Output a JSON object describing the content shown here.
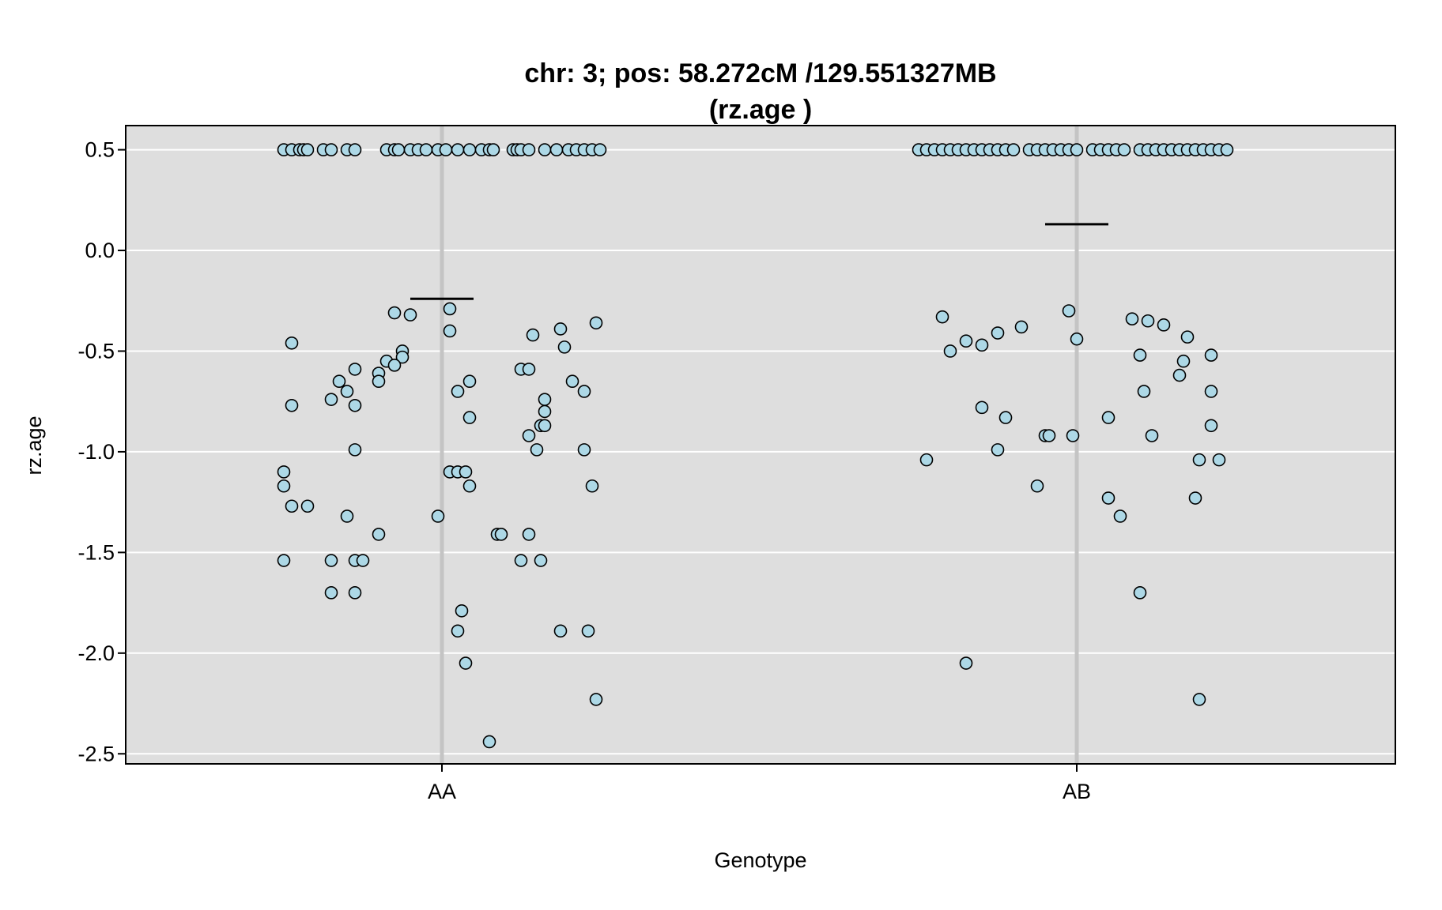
{
  "chart_data": {
    "type": "scatter",
    "title": "chr: 3; pos: 58.272cM /129.551327MB",
    "subtitle": "(rz.age )",
    "xlabel": "Genotype",
    "ylabel": "rz.age",
    "categories": [
      "AA",
      "AB"
    ],
    "ylim": [
      -2.55,
      0.62
    ],
    "yticks": [
      "0.5",
      "0.0",
      "-0.5",
      "-1.0",
      "-1.5",
      "-2.0",
      "-2.5"
    ],
    "grid": true,
    "colors": {
      "panel": "#dedede",
      "grid": "#ffffff",
      "category_line": "#c4c4c4",
      "point_fill": "#add8e6",
      "point_stroke": "#000000",
      "mean_line": "#000000"
    },
    "means": [
      {
        "category": "AA",
        "value": -0.24
      },
      {
        "category": "AB",
        "value": 0.13
      }
    ],
    "series": [
      {
        "category": "AA",
        "points": [
          [
            -0.2,
            0.5
          ],
          [
            -0.19,
            0.5
          ],
          [
            -0.18,
            0.5
          ],
          [
            -0.175,
            0.5
          ],
          [
            -0.17,
            0.5
          ],
          [
            -0.15,
            0.5
          ],
          [
            -0.14,
            0.5
          ],
          [
            -0.12,
            0.5
          ],
          [
            -0.11,
            0.5
          ],
          [
            -0.07,
            0.5
          ],
          [
            -0.06,
            0.5
          ],
          [
            -0.055,
            0.5
          ],
          [
            -0.04,
            0.5
          ],
          [
            -0.03,
            0.5
          ],
          [
            -0.02,
            0.5
          ],
          [
            -0.005,
            0.5
          ],
          [
            0.005,
            0.5
          ],
          [
            0.02,
            0.5
          ],
          [
            0.035,
            0.5
          ],
          [
            0.05,
            0.5
          ],
          [
            0.06,
            0.5
          ],
          [
            0.065,
            0.5
          ],
          [
            0.09,
            0.5
          ],
          [
            0.095,
            0.5
          ],
          [
            0.1,
            0.5
          ],
          [
            0.11,
            0.5
          ],
          [
            0.13,
            0.5
          ],
          [
            0.145,
            0.5
          ],
          [
            0.16,
            0.5
          ],
          [
            0.17,
            0.5
          ],
          [
            0.18,
            0.5
          ],
          [
            0.19,
            0.5
          ],
          [
            0.2,
            0.5
          ],
          [
            -0.06,
            -0.31
          ],
          [
            -0.04,
            -0.32
          ],
          [
            0.01,
            -0.29
          ],
          [
            0.01,
            -0.4
          ],
          [
            -0.19,
            -0.46
          ],
          [
            -0.05,
            -0.5
          ],
          [
            -0.05,
            -0.53
          ],
          [
            -0.07,
            -0.55
          ],
          [
            -0.06,
            -0.57
          ],
          [
            -0.08,
            -0.61
          ],
          [
            -0.11,
            -0.59
          ],
          [
            -0.08,
            -0.65
          ],
          [
            -0.13,
            -0.65
          ],
          [
            -0.12,
            -0.7
          ],
          [
            -0.11,
            -0.77
          ],
          [
            -0.14,
            -0.74
          ],
          [
            -0.19,
            -0.77
          ],
          [
            -0.11,
            -0.99
          ],
          [
            -0.2,
            -1.1
          ],
          [
            -0.2,
            -1.17
          ],
          [
            -0.19,
            -1.27
          ],
          [
            -0.17,
            -1.27
          ],
          [
            -0.12,
            -1.32
          ],
          [
            -0.08,
            -1.41
          ],
          [
            -0.2,
            -1.54
          ],
          [
            -0.14,
            -1.54
          ],
          [
            -0.11,
            -1.54
          ],
          [
            -0.1,
            -1.54
          ],
          [
            -0.14,
            -1.7
          ],
          [
            -0.11,
            -1.7
          ],
          [
            -0.005,
            -1.32
          ],
          [
            0.02,
            -0.7
          ],
          [
            0.035,
            -0.65
          ],
          [
            0.035,
            -0.83
          ],
          [
            0.01,
            -1.1
          ],
          [
            0.02,
            -1.1
          ],
          [
            0.03,
            -1.1
          ],
          [
            0.035,
            -1.17
          ],
          [
            0.025,
            -1.79
          ],
          [
            0.02,
            -1.89
          ],
          [
            0.03,
            -2.05
          ],
          [
            0.06,
            -2.44
          ],
          [
            0.07,
            -1.41
          ],
          [
            0.075,
            -1.41
          ],
          [
            0.1,
            -0.59
          ],
          [
            0.1,
            -1.54
          ],
          [
            0.11,
            -0.59
          ],
          [
            0.11,
            -1.41
          ],
          [
            0.11,
            -0.92
          ],
          [
            0.115,
            -0.42
          ],
          [
            0.12,
            -0.99
          ],
          [
            0.125,
            -0.87
          ],
          [
            0.125,
            -1.54
          ],
          [
            0.13,
            -0.74
          ],
          [
            0.13,
            -0.8
          ],
          [
            0.13,
            -0.87
          ],
          [
            0.15,
            -0.39
          ],
          [
            0.15,
            -1.89
          ],
          [
            0.155,
            -0.48
          ],
          [
            0.165,
            -0.65
          ],
          [
            0.18,
            -0.7
          ],
          [
            0.18,
            -0.99
          ],
          [
            0.185,
            -1.89
          ],
          [
            0.19,
            -1.17
          ],
          [
            0.195,
            -0.36
          ],
          [
            0.195,
            -2.23
          ]
        ]
      },
      {
        "category": "AB",
        "points": [
          [
            -0.2,
            0.5
          ],
          [
            -0.19,
            0.5
          ],
          [
            -0.18,
            0.5
          ],
          [
            -0.17,
            0.5
          ],
          [
            -0.16,
            0.5
          ],
          [
            -0.15,
            0.5
          ],
          [
            -0.14,
            0.5
          ],
          [
            -0.13,
            0.5
          ],
          [
            -0.12,
            0.5
          ],
          [
            -0.11,
            0.5
          ],
          [
            -0.1,
            0.5
          ],
          [
            -0.09,
            0.5
          ],
          [
            -0.08,
            0.5
          ],
          [
            -0.06,
            0.5
          ],
          [
            -0.05,
            0.5
          ],
          [
            -0.04,
            0.5
          ],
          [
            -0.03,
            0.5
          ],
          [
            -0.02,
            0.5
          ],
          [
            -0.01,
            0.5
          ],
          [
            0.0,
            0.5
          ],
          [
            0.02,
            0.5
          ],
          [
            0.03,
            0.5
          ],
          [
            0.04,
            0.5
          ],
          [
            0.05,
            0.5
          ],
          [
            0.06,
            0.5
          ],
          [
            0.08,
            0.5
          ],
          [
            0.09,
            0.5
          ],
          [
            0.1,
            0.5
          ],
          [
            0.11,
            0.5
          ],
          [
            0.12,
            0.5
          ],
          [
            0.13,
            0.5
          ],
          [
            0.14,
            0.5
          ],
          [
            0.15,
            0.5
          ],
          [
            0.16,
            0.5
          ],
          [
            0.17,
            0.5
          ],
          [
            0.18,
            0.5
          ],
          [
            0.19,
            0.5
          ],
          [
            -0.17,
            -0.33
          ],
          [
            -0.19,
            -1.04
          ],
          [
            -0.16,
            -0.5
          ],
          [
            -0.14,
            -0.45
          ],
          [
            -0.12,
            -0.47
          ],
          [
            -0.12,
            -0.78
          ],
          [
            -0.1,
            -0.41
          ],
          [
            -0.1,
            -0.99
          ],
          [
            -0.09,
            -0.83
          ],
          [
            -0.07,
            -0.38
          ],
          [
            -0.05,
            -1.17
          ],
          [
            -0.04,
            -0.92
          ],
          [
            -0.035,
            -0.92
          ],
          [
            -0.01,
            -0.3
          ],
          [
            -0.005,
            -0.92
          ],
          [
            0.0,
            -0.44
          ],
          [
            -0.14,
            -2.05
          ],
          [
            0.04,
            -0.83
          ],
          [
            0.04,
            -1.23
          ],
          [
            0.055,
            -1.32
          ],
          [
            0.07,
            -0.34
          ],
          [
            0.08,
            -0.52
          ],
          [
            0.085,
            -0.7
          ],
          [
            0.09,
            -0.35
          ],
          [
            0.095,
            -0.92
          ],
          [
            0.08,
            -1.7
          ],
          [
            0.11,
            -0.37
          ],
          [
            0.13,
            -0.62
          ],
          [
            0.135,
            -0.55
          ],
          [
            0.14,
            -0.43
          ],
          [
            0.15,
            -1.23
          ],
          [
            0.155,
            -1.04
          ],
          [
            0.155,
            -2.23
          ],
          [
            0.17,
            -0.52
          ],
          [
            0.17,
            -0.87
          ],
          [
            0.17,
            -0.7
          ],
          [
            0.18,
            -1.04
          ]
        ]
      }
    ]
  }
}
